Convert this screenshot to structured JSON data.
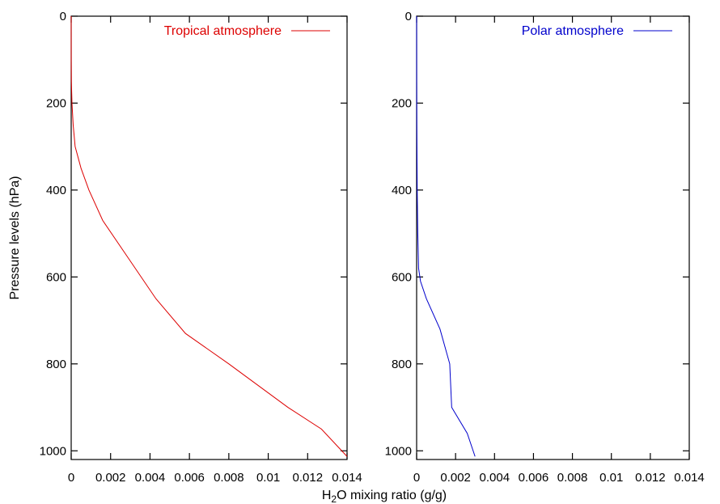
{
  "chart_data": [
    {
      "type": "line",
      "title": "",
      "xlabel": "",
      "ylabel": "Pressure levels (hPa)",
      "xlim": [
        0,
        0.014
      ],
      "ylim": [
        1020,
        0
      ],
      "y_inverted": true,
      "xticks": [
        0,
        0.002,
        0.004,
        0.006,
        0.008,
        0.01,
        0.012,
        0.014
      ],
      "xtick_labels": [
        "0",
        "0.002",
        "0.004",
        "0.006",
        "0.008",
        "0.01",
        "0.012",
        "0.014"
      ],
      "yticks": [
        0,
        200,
        400,
        600,
        800,
        1000
      ],
      "ytick_labels": [
        "0",
        "200",
        "400",
        "600",
        "800",
        "1000"
      ],
      "grid": false,
      "legend": "top-right",
      "series": [
        {
          "name": "Tropical atmosphere",
          "color": "#dd0000",
          "x": [
            0,
            5e-07,
            2e-06,
            1e-05,
            4e-05,
            0.0001,
            0.0002,
            0.0005,
            0.0009,
            0.0016,
            0.0028,
            0.0043,
            0.0058,
            0.008,
            0.011,
            0.0127,
            0.014
          ],
          "y": [
            0,
            50,
            100,
            150,
            200,
            250,
            300,
            350,
            400,
            470,
            550,
            650,
            730,
            800,
            900,
            950,
            1013
          ]
        }
      ]
    },
    {
      "type": "line",
      "title": "",
      "xlabel": "H2O mixing ratio (g/g)",
      "xlabel_main": "H",
      "xlabel_sub": "2",
      "xlabel_rest": "O mixing ratio (g/g)",
      "ylabel": "",
      "xlim": [
        0,
        0.014
      ],
      "ylim": [
        1020,
        0
      ],
      "y_inverted": true,
      "xticks": [
        0,
        0.002,
        0.004,
        0.006,
        0.008,
        0.01,
        0.012,
        0.014
      ],
      "xtick_labels": [
        "0",
        "0.002",
        "0.004",
        "0.006",
        "0.008",
        "0.01",
        "0.012",
        "0.014"
      ],
      "yticks": [
        0,
        200,
        400,
        600,
        800,
        1000
      ],
      "ytick_labels": [
        "0",
        "200",
        "400",
        "600",
        "800",
        "1000"
      ],
      "grid": false,
      "legend": "top-right",
      "series": [
        {
          "name": "Polar atmosphere",
          "color": "#0000cc",
          "x": [
            0,
            3e-06,
            1e-05,
            3e-05,
            6e-05,
            0.0001,
            0.0002,
            0.0005,
            0.0012,
            0.0017,
            0.0018,
            0.0026,
            0.003
          ],
          "y": [
            0,
            150,
            250,
            400,
            500,
            580,
            610,
            650,
            720,
            800,
            900,
            960,
            1013
          ]
        }
      ]
    }
  ]
}
